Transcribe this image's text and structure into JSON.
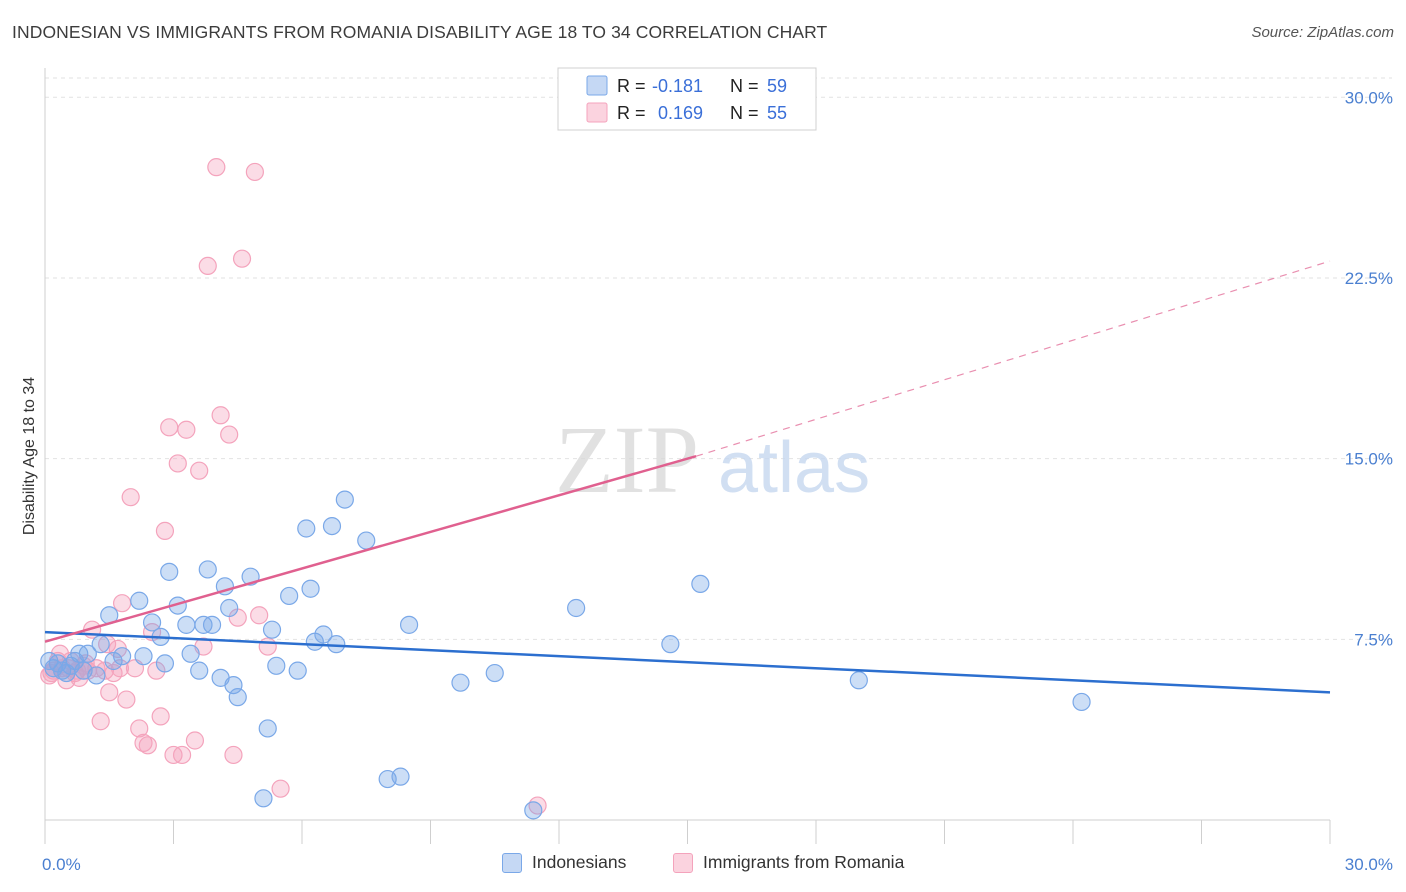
{
  "header": {
    "title": "INDONESIAN VS IMMIGRANTS FROM ROMANIA DISABILITY AGE 18 TO 34 CORRELATION CHART",
    "source": "Source: ZipAtlas.com"
  },
  "watermark": {
    "zip": "ZIP",
    "atlas": "atlas"
  },
  "legend_box": {
    "rows": [
      {
        "r_label": "R =",
        "r_value": "-0.181",
        "n_label": "N =",
        "n_value": "59"
      },
      {
        "r_label": "R =",
        "r_value": "0.169",
        "n_label": "N =",
        "n_value": "55"
      }
    ]
  },
  "chart_data": {
    "type": "scatter",
    "title": "INDONESIAN VS IMMIGRANTS FROM ROMANIA DISABILITY AGE 18 TO 34 CORRELATION CHART",
    "xlabel": "",
    "ylabel": "Disability Age 18 to 34",
    "xlim": [
      0,
      30
    ],
    "ylim": [
      0,
      30.8
    ],
    "x_tick_labels": [
      "0.0%",
      "30.0%"
    ],
    "y_ticks": [
      7.5,
      15.0,
      22.5,
      30.0
    ],
    "y_tick_labels": [
      "7.5%",
      "15.0%",
      "22.5%",
      "30.0%"
    ],
    "grid": true,
    "legend_position": "top-center",
    "colors": {
      "indonesians": "#7aa8e8",
      "romania": "#f4a3bc",
      "indonesians_line": "#2c6fcf",
      "romania_line": "#e0608f"
    },
    "series": [
      {
        "name": "Indonesians",
        "r": -0.181,
        "n": 59,
        "trend": {
          "x": [
            0,
            30
          ],
          "y": [
            7.8,
            5.3
          ]
        },
        "points": [
          [
            0.1,
            6.6
          ],
          [
            0.2,
            6.3
          ],
          [
            0.3,
            6.5
          ],
          [
            0.4,
            6.2
          ],
          [
            0.5,
            6.1
          ],
          [
            0.6,
            6.4
          ],
          [
            0.7,
            6.6
          ],
          [
            0.8,
            6.9
          ],
          [
            1.0,
            6.9
          ],
          [
            1.2,
            6.0
          ],
          [
            1.3,
            7.3
          ],
          [
            1.5,
            8.5
          ],
          [
            1.6,
            6.6
          ],
          [
            1.8,
            6.8
          ],
          [
            2.2,
            9.1
          ],
          [
            2.3,
            6.8
          ],
          [
            2.5,
            8.2
          ],
          [
            2.7,
            7.6
          ],
          [
            2.8,
            6.5
          ],
          [
            2.9,
            10.3
          ],
          [
            3.1,
            8.9
          ],
          [
            3.3,
            8.1
          ],
          [
            3.4,
            6.9
          ],
          [
            3.6,
            6.2
          ],
          [
            3.7,
            8.1
          ],
          [
            3.8,
            10.4
          ],
          [
            3.9,
            8.1
          ],
          [
            4.1,
            5.9
          ],
          [
            4.2,
            9.7
          ],
          [
            4.3,
            8.8
          ],
          [
            4.4,
            5.6
          ],
          [
            4.5,
            5.1
          ],
          [
            4.8,
            10.1
          ],
          [
            5.1,
            0.9
          ],
          [
            5.2,
            3.8
          ],
          [
            5.3,
            7.9
          ],
          [
            5.4,
            6.4
          ],
          [
            5.7,
            9.3
          ],
          [
            5.9,
            6.2
          ],
          [
            6.1,
            12.1
          ],
          [
            6.2,
            9.6
          ],
          [
            6.3,
            7.4
          ],
          [
            6.5,
            7.7
          ],
          [
            6.7,
            12.2
          ],
          [
            6.8,
            7.3
          ],
          [
            7.0,
            13.3
          ],
          [
            7.5,
            11.6
          ],
          [
            8.0,
            1.7
          ],
          [
            8.3,
            1.8
          ],
          [
            8.5,
            8.1
          ],
          [
            9.7,
            5.7
          ],
          [
            10.5,
            6.1
          ],
          [
            11.4,
            0.4
          ],
          [
            12.4,
            8.8
          ],
          [
            14.6,
            7.3
          ],
          [
            15.3,
            9.8
          ],
          [
            19.0,
            5.8
          ],
          [
            24.2,
            4.9
          ],
          [
            0.9,
            6.2
          ]
        ]
      },
      {
        "name": "Immigrants from Romania",
        "r": 0.169,
        "n": 55,
        "trend": {
          "x": [
            0,
            15.2
          ],
          "y": [
            7.4,
            15.1
          ]
        },
        "trend_dashed": {
          "x": [
            15.2,
            30
          ],
          "y": [
            15.1,
            23.2
          ]
        },
        "points": [
          [
            0.1,
            6.0
          ],
          [
            0.2,
            6.2
          ],
          [
            0.3,
            6.6
          ],
          [
            0.4,
            6.3
          ],
          [
            0.5,
            5.8
          ],
          [
            0.6,
            6.6
          ],
          [
            0.7,
            6.1
          ],
          [
            0.8,
            5.9
          ],
          [
            0.9,
            6.4
          ],
          [
            1.0,
            6.2
          ],
          [
            1.1,
            7.9
          ],
          [
            1.2,
            6.3
          ],
          [
            1.3,
            4.1
          ],
          [
            1.4,
            6.2
          ],
          [
            1.5,
            5.3
          ],
          [
            1.6,
            6.1
          ],
          [
            1.7,
            7.1
          ],
          [
            1.8,
            9.0
          ],
          [
            1.9,
            5.0
          ],
          [
            2.0,
            13.4
          ],
          [
            2.1,
            6.3
          ],
          [
            2.2,
            3.8
          ],
          [
            2.3,
            3.2
          ],
          [
            2.4,
            3.1
          ],
          [
            2.5,
            7.8
          ],
          [
            2.6,
            6.2
          ],
          [
            2.7,
            4.3
          ],
          [
            2.8,
            12.0
          ],
          [
            2.9,
            16.3
          ],
          [
            3.0,
            2.7
          ],
          [
            3.1,
            14.8
          ],
          [
            3.2,
            2.7
          ],
          [
            3.3,
            16.2
          ],
          [
            3.5,
            3.3
          ],
          [
            3.6,
            14.5
          ],
          [
            3.7,
            7.2
          ],
          [
            3.8,
            23.0
          ],
          [
            4.0,
            27.1
          ],
          [
            4.1,
            16.8
          ],
          [
            4.3,
            16.0
          ],
          [
            4.4,
            2.7
          ],
          [
            4.5,
            8.4
          ],
          [
            4.6,
            23.3
          ],
          [
            4.9,
            26.9
          ],
          [
            5.0,
            8.5
          ],
          [
            5.2,
            7.2
          ],
          [
            5.5,
            1.3
          ],
          [
            0.15,
            6.1
          ],
          [
            0.35,
            6.9
          ],
          [
            0.55,
            6.3
          ],
          [
            0.75,
            6.2
          ],
          [
            0.95,
            6.5
          ],
          [
            1.45,
            7.3
          ],
          [
            1.75,
            6.3
          ],
          [
            11.5,
            0.6
          ]
        ]
      }
    ]
  },
  "bottom_legend": {
    "items": [
      {
        "label": "Indonesians"
      },
      {
        "label": "Immigrants from Romania"
      }
    ]
  }
}
